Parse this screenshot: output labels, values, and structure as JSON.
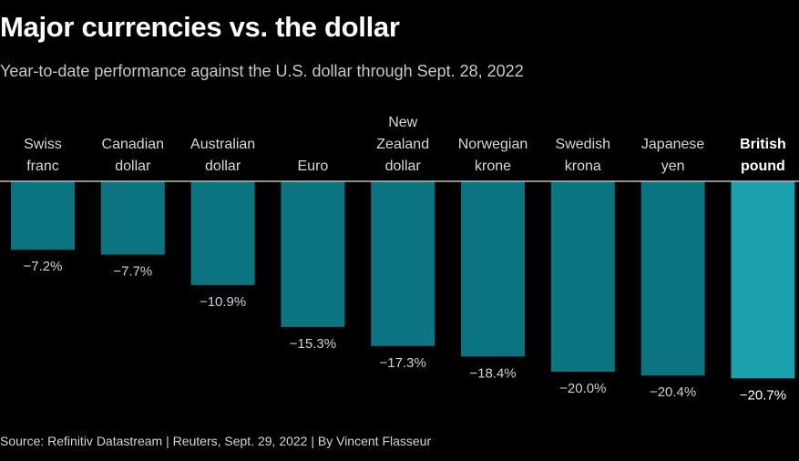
{
  "header": {
    "title": "Major currencies vs. the dollar",
    "subtitle": "Year-to-date performance against the U.S. dollar through Sept. 28, 2022"
  },
  "footer": {
    "source": "Source: Refinitiv Datastream | Reuters, Sept. 29, 2022 | By Vincent Flasseur"
  },
  "colors": {
    "bar": "#0b7480",
    "bar_highlight": "#1aa0ad",
    "baseline": "#bdbdbd"
  },
  "chart_data": {
    "type": "bar",
    "orientation": "vertical",
    "categories": [
      [
        "Swiss",
        "franc"
      ],
      [
        "Canadian",
        "dollar"
      ],
      [
        "Australian",
        "dollar"
      ],
      [
        "Euro"
      ],
      [
        "New",
        "Zealand",
        "dollar"
      ],
      [
        "Norwegian",
        "krone"
      ],
      [
        "Swedish",
        "krona"
      ],
      [
        "Japanese",
        "yen"
      ],
      [
        "British",
        "pound"
      ]
    ],
    "values": [
      -7.2,
      -7.7,
      -10.9,
      -15.3,
      -17.3,
      -18.4,
      -20.0,
      -20.4,
      -20.7
    ],
    "value_labels": [
      "−7.2%",
      "−7.7%",
      "−10.9%",
      "−15.3%",
      "−17.3%",
      "−18.4%",
      "−20.0%",
      "−20.4%",
      "−20.7%"
    ],
    "highlight_index": 8,
    "ylim": [
      -21,
      0
    ],
    "grid": false,
    "xlabel": "",
    "ylabel": ""
  }
}
